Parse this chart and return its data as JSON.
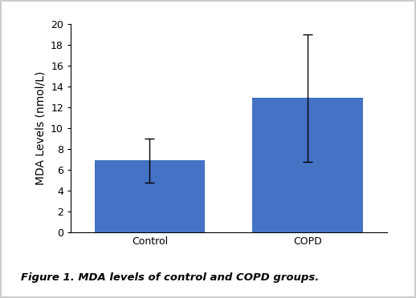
{
  "categories": [
    "Control",
    "COPD"
  ],
  "values": [
    6.9,
    12.9
  ],
  "errors": [
    2.1,
    6.1
  ],
  "bar_color": "#4472C4",
  "bar_width": 0.35,
  "ylabel": "MDA Levels (nmol/L)",
  "ylim": [
    0,
    20
  ],
  "yticks": [
    0,
    2,
    4,
    6,
    8,
    10,
    12,
    14,
    16,
    18,
    20
  ],
  "xlabel": "",
  "title": "",
  "caption": "Figure 1. MDA levels of control and COPD groups.",
  "caption_fontsize": 9.5,
  "tick_fontsize": 9,
  "label_fontsize": 10,
  "error_capsize": 4,
  "error_linewidth": 1.0,
  "background_color": "#ffffff",
  "axes_bg_color": "#ffffff",
  "figure_bg_color": "#ffffff",
  "border_color": "#cccccc"
}
